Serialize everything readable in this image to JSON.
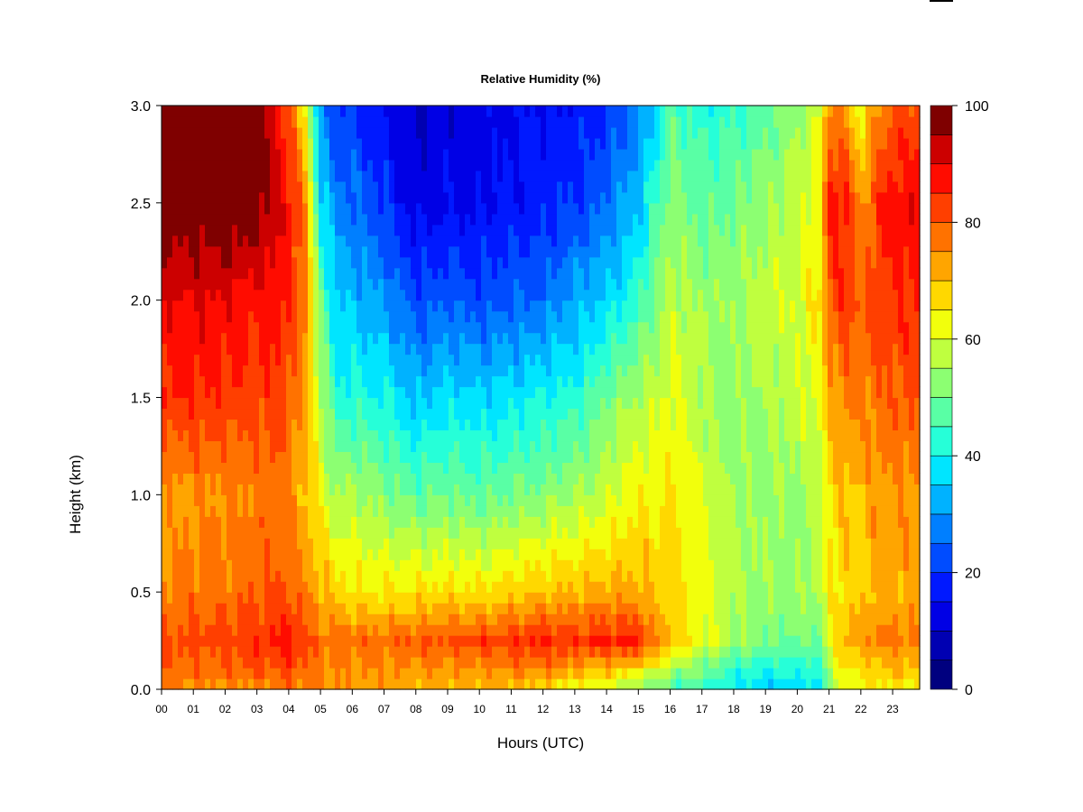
{
  "chart_data": {
    "type": "heatmap",
    "title": "Relative Humidity (%)",
    "xlabel": "Hours (UTC)",
    "ylabel": "Height (km)",
    "x_tick_labels": [
      "00",
      "01",
      "02",
      "03",
      "04",
      "05",
      "06",
      "07",
      "08",
      "09",
      "10",
      "11",
      "12",
      "13",
      "14",
      "15",
      "16",
      "17",
      "18",
      "19",
      "20",
      "21",
      "22",
      "23"
    ],
    "y_tick_labels": [
      "0.0",
      "0.5",
      "1.0",
      "1.5",
      "2.0",
      "2.5",
      "3.0"
    ],
    "xlim": [
      0,
      23.85
    ],
    "ylim": [
      0,
      3.0
    ],
    "colorbar": {
      "range": [
        0,
        100
      ],
      "step": 5,
      "tick_labels": [
        "0",
        "20",
        "40",
        "60",
        "80",
        "100"
      ],
      "colors": [
        "#00007F",
        "#0000B2",
        "#0000E5",
        "#0019FF",
        "#004CFF",
        "#007FFF",
        "#00B2FF",
        "#00E5FF",
        "#26FFD8",
        "#59FFA5",
        "#8CFF72",
        "#BFFF3F",
        "#F2FF0C",
        "#FFD800",
        "#FFA500",
        "#FF7200",
        "#FF3F00",
        "#FF0C00",
        "#CC0000",
        "#7F0000"
      ]
    },
    "z_units": "%",
    "heights_km": [
      0.0,
      0.1,
      0.25,
      0.5,
      1.0,
      1.5,
      2.0,
      2.5,
      3.0
    ],
    "profiles": [
      {
        "hour": 0.0,
        "rh": [
          75,
          78,
          80,
          76,
          72,
          85,
          90,
          100,
          100
        ]
      },
      {
        "hour": 1.0,
        "rh": [
          74,
          78,
          82,
          77,
          74,
          85,
          90,
          100,
          100
        ]
      },
      {
        "hour": 2.0,
        "rh": [
          74,
          79,
          82,
          78,
          75,
          84,
          90,
          100,
          100
        ]
      },
      {
        "hour": 3.0,
        "rh": [
          74,
          80,
          84,
          79,
          76,
          82,
          87,
          98,
          100
        ]
      },
      {
        "hour": 3.6,
        "rh": [
          75,
          80,
          86,
          80,
          78,
          84,
          88,
          92,
          90
        ]
      },
      {
        "hour": 4.0,
        "rh": [
          76,
          82,
          88,
          80,
          76,
          80,
          84,
          88,
          82
        ]
      },
      {
        "hour": 4.5,
        "rh": [
          76,
          80,
          82,
          76,
          70,
          74,
          78,
          76,
          65
        ]
      },
      {
        "hour": 5.0,
        "rh": [
          75,
          76,
          78,
          72,
          62,
          58,
          50,
          38,
          28
        ]
      },
      {
        "hour": 5.5,
        "rh": [
          74,
          75,
          77,
          68,
          55,
          42,
          35,
          28,
          20
        ]
      },
      {
        "hour": 6.0,
        "rh": [
          74,
          75,
          78,
          66,
          56,
          42,
          34,
          26,
          20
        ]
      },
      {
        "hour": 7.0,
        "rh": [
          73,
          74,
          78,
          65,
          52,
          40,
          30,
          20,
          15
        ]
      },
      {
        "hour": 8.0,
        "rh": [
          72,
          74,
          80,
          66,
          48,
          34,
          22,
          12,
          10
        ]
      },
      {
        "hour": 9.0,
        "rh": [
          71,
          74,
          81,
          66,
          50,
          38,
          24,
          14,
          12
        ]
      },
      {
        "hour": 10.0,
        "rh": [
          70,
          74,
          82,
          66,
          48,
          36,
          22,
          14,
          12
        ]
      },
      {
        "hour": 11.0,
        "rh": [
          70,
          75,
          84,
          68,
          50,
          38,
          24,
          16,
          14
        ]
      },
      {
        "hour": 12.0,
        "rh": [
          68,
          76,
          86,
          70,
          52,
          40,
          26,
          18,
          16
        ]
      },
      {
        "hour": 13.0,
        "rh": [
          60,
          72,
          84,
          70,
          55,
          42,
          32,
          20,
          16
        ]
      },
      {
        "hour": 14.0,
        "rh": [
          58,
          70,
          86,
          72,
          58,
          50,
          36,
          26,
          18
        ]
      },
      {
        "hour": 15.0,
        "rh": [
          52,
          66,
          86,
          72,
          64,
          56,
          44,
          34,
          28
        ]
      },
      {
        "hour": 15.6,
        "rh": [
          50,
          60,
          74,
          68,
          64,
          58,
          52,
          46,
          36
        ]
      },
      {
        "hour": 16.0,
        "rh": [
          46,
          56,
          70,
          68,
          66,
          62,
          58,
          52,
          48
        ]
      },
      {
        "hour": 17.0,
        "rh": [
          42,
          50,
          62,
          62,
          60,
          56,
          54,
          48,
          42
        ]
      },
      {
        "hour": 18.0,
        "rh": [
          38,
          44,
          54,
          56,
          54,
          52,
          54,
          50,
          44
        ]
      },
      {
        "hour": 19.0,
        "rh": [
          36,
          42,
          50,
          54,
          54,
          56,
          58,
          54,
          48
        ]
      },
      {
        "hour": 20.0,
        "rh": [
          36,
          42,
          50,
          54,
          54,
          58,
          60,
          58,
          54
        ]
      },
      {
        "hour": 20.7,
        "rh": [
          38,
          42,
          50,
          56,
          56,
          62,
          66,
          64,
          60
        ]
      },
      {
        "hour": 21.0,
        "rh": [
          50,
          56,
          62,
          64,
          66,
          72,
          80,
          86,
          76
        ]
      },
      {
        "hour": 21.5,
        "rh": [
          60,
          66,
          72,
          68,
          70,
          76,
          84,
          88,
          72
        ]
      },
      {
        "hour": 22.0,
        "rh": [
          62,
          66,
          72,
          68,
          70,
          76,
          80,
          72,
          62
        ]
      },
      {
        "hour": 22.5,
        "rh": [
          64,
          70,
          76,
          72,
          74,
          78,
          82,
          84,
          74
        ]
      },
      {
        "hour": 23.0,
        "rh": [
          64,
          70,
          76,
          72,
          74,
          80,
          84,
          88,
          80
        ]
      },
      {
        "hour": 23.85,
        "rh": [
          64,
          70,
          76,
          72,
          74,
          80,
          86,
          90,
          82
        ]
      }
    ]
  }
}
